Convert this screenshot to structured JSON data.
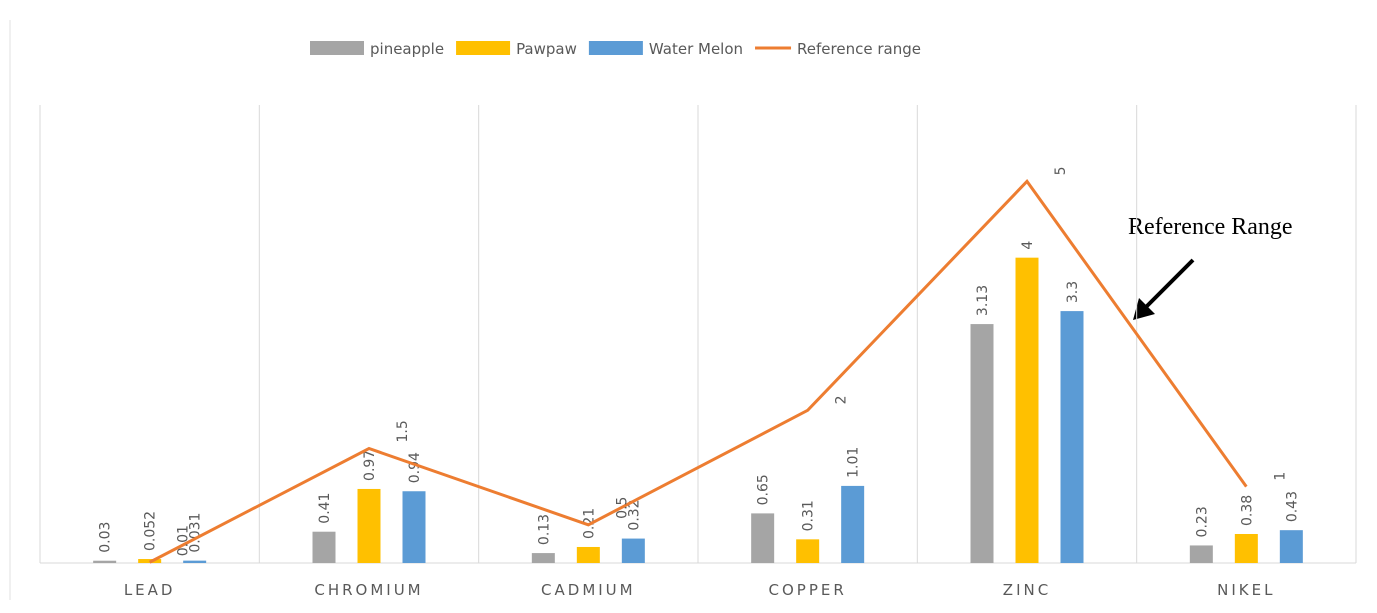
{
  "chart_data": {
    "type": "bar",
    "categories": [
      "LEAD",
      "CHROMIUM",
      "CADMIUM",
      "COPPER",
      "ZINC",
      "NIKEL"
    ],
    "series": [
      {
        "name": "pineapple",
        "color": "#a5a5a5",
        "values": [
          0.03,
          0.41,
          0.13,
          0.65,
          3.13,
          0.23
        ]
      },
      {
        "name": "Pawpaw",
        "color": "#ffc000",
        "values": [
          0.052,
          0.97,
          0.21,
          0.31,
          4,
          0.38
        ]
      },
      {
        "name": "Water Melon",
        "color": "#5b9bd5",
        "values": [
          0.031,
          0.94,
          0.32,
          1.01,
          3.3,
          0.43
        ]
      },
      {
        "name": "Reference range",
        "color": "#ed7d31",
        "type": "line",
        "values": [
          0.01,
          1.5,
          0.5,
          2,
          5,
          1
        ]
      }
    ],
    "ylim": [
      0,
      6
    ],
    "annotation": "Reference Range"
  }
}
